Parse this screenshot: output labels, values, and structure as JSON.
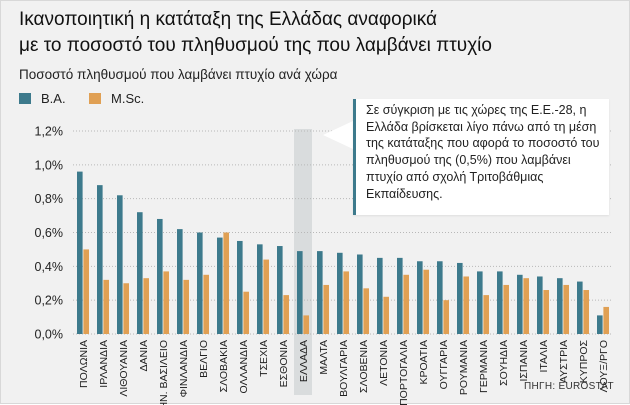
{
  "title_line1": "Ικανοποιητική η κατάταξη της Ελλάδας αναφορικά",
  "title_line2": "με το ποσοστό του πληθυσμού της που λαμβάνει πτυχίο",
  "subtitle": "Ποσοστό πληθυσμού που λαμβάνει πτυχίο ανά χώρα",
  "annotation": "Σε σύγκριση με τις χώρες της Ε.Ε.-28, η Ελλάδα βρίσκεται λίγο πάνω από τη μέση της κατάταξης που αφορά το ποσοστό του πληθυσμού της (0,5%) που λαμβάνει πτυχίο από σχολή Τριτοβάθμιας Εκπαίδευσης.",
  "source": "ΠΗΓΗ: EUROSTAT",
  "colors": {
    "ba": "#3d7a8c",
    "msc": "#e0a054",
    "highlight": "#d9dcdd",
    "grid": "#b8b8b8"
  },
  "chart_data": {
    "type": "bar",
    "title": "Ικανοποιητική η κατάταξη της Ελλάδας αναφορικά με το ποσοστό του πληθυσμού της που λαμβάνει πτυχίο",
    "subtitle": "Ποσοστό πληθυσμού που λαμβάνει πτυχίο ανά χώρα",
    "xlabel": "",
    "ylabel": "",
    "ylim": [
      0,
      1.2
    ],
    "yticks": [
      0.0,
      0.2,
      0.4,
      0.6,
      0.8,
      1.0,
      1.2
    ],
    "ytick_labels": [
      "0,0%",
      "0,2%",
      "0,4%",
      "0,6%",
      "0,8%",
      "1,0%",
      "1,2%"
    ],
    "grid": true,
    "legend_position": "top-left",
    "highlighted_category": "ΕΛΛΑΔΑ",
    "categories": [
      "ΠΟΛΩΝΙΑ",
      "ΙΡΛΑΝΔΙΑ",
      "ΛΙΘΟΥΑΝΙΑ",
      "ΔΑΝΙΑ",
      "ΗΝ. ΒΑΣΙΛΕΙΟ",
      "ΦΙΝΛΑΝΔΙΑ",
      "ΒΕΛΓΙΟ",
      "ΣΛΟΒΑΚΙΑ",
      "ΟΛΛΑΝΔΙΑ",
      "ΤΣΕΧΙΑ",
      "ΕΣΘΟΝΙΑ",
      "ΕΛΛΑΔΑ",
      "ΜΑΛΤΑ",
      "ΒΟΥΛΓΑΡΙΑ",
      "ΣΛΟΒΕΝΙΑ",
      "ΛΕΤΟΝΙΑ",
      "ΠΟΡΤΟΓΑΛΙΑ",
      "ΚΡΟΑΤΙΑ",
      "ΟΥΓΓΑΡΙΑ",
      "ΡΟΥΜΑΝΙΑ",
      "ΓΕΡΜΑΝΙΑ",
      "ΣΟΥΗΔΙΑ",
      "ΙΣΠΑΝΙΑ",
      "ΙΤΑΛΙΑ",
      "ΑΥΣΤΡΙΑ",
      "ΚΥΠΡΟΣ",
      "ΛΟΥΞ/ΡΓΟ"
    ],
    "series": [
      {
        "name": "Β.Α.",
        "values": [
          0.96,
          0.88,
          0.82,
          0.72,
          0.68,
          0.62,
          0.6,
          0.57,
          0.55,
          0.53,
          0.52,
          0.49,
          0.49,
          0.48,
          0.47,
          0.45,
          0.45,
          0.43,
          0.43,
          0.42,
          0.37,
          0.37,
          0.35,
          0.34,
          0.33,
          0.31,
          0.11
        ]
      },
      {
        "name": "M.Sc.",
        "values": [
          0.5,
          0.32,
          0.3,
          0.33,
          0.37,
          0.32,
          0.35,
          0.6,
          0.25,
          0.44,
          0.23,
          0.11,
          0.29,
          0.37,
          0.27,
          0.22,
          0.35,
          0.38,
          0.2,
          0.34,
          0.23,
          0.29,
          0.33,
          0.26,
          0.29,
          0.26,
          0.16
        ]
      }
    ]
  }
}
